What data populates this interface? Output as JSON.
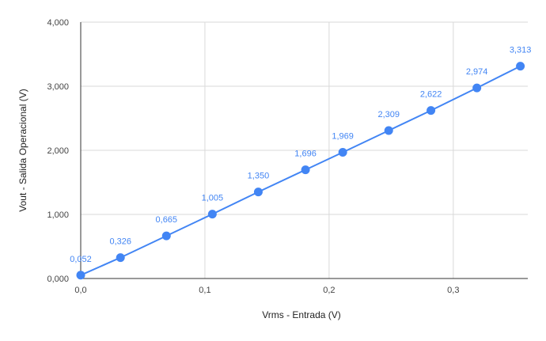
{
  "chart_data": {
    "type": "scatter",
    "title": "",
    "xlabel": "Vrms - Entrada (V)",
    "ylabel": "Vout - Salida Operacional (V)",
    "xlim": [
      0,
      0.36
    ],
    "ylim": [
      0,
      4
    ],
    "grid": true,
    "line": true,
    "series_color": "#4285f4",
    "x_ticks": [
      {
        "value": 0.0,
        "label": "0,0"
      },
      {
        "value": 0.1,
        "label": "0,1"
      },
      {
        "value": 0.2,
        "label": "0,2"
      },
      {
        "value": 0.3,
        "label": "0,3"
      }
    ],
    "y_ticks": [
      {
        "value": 0,
        "label": "0,000"
      },
      {
        "value": 1,
        "label": "1,000"
      },
      {
        "value": 2,
        "label": "2,000"
      },
      {
        "value": 3,
        "label": "3,000"
      },
      {
        "value": 4,
        "label": "4,000"
      }
    ],
    "points": [
      {
        "x": 0.0,
        "y": 0.052,
        "label": "0,052"
      },
      {
        "x": 0.032,
        "y": 0.326,
        "label": "0,326"
      },
      {
        "x": 0.069,
        "y": 0.665,
        "label": "0,665"
      },
      {
        "x": 0.106,
        "y": 1.005,
        "label": "1,005"
      },
      {
        "x": 0.143,
        "y": 1.35,
        "label": "1,350"
      },
      {
        "x": 0.181,
        "y": 1.696,
        "label": "1,696"
      },
      {
        "x": 0.211,
        "y": 1.969,
        "label": "1,969"
      },
      {
        "x": 0.248,
        "y": 2.309,
        "label": "2,309"
      },
      {
        "x": 0.282,
        "y": 2.622,
        "label": "2,622"
      },
      {
        "x": 0.319,
        "y": 2.974,
        "label": "2,974"
      },
      {
        "x": 0.354,
        "y": 3.313,
        "label": "3,313"
      }
    ]
  }
}
